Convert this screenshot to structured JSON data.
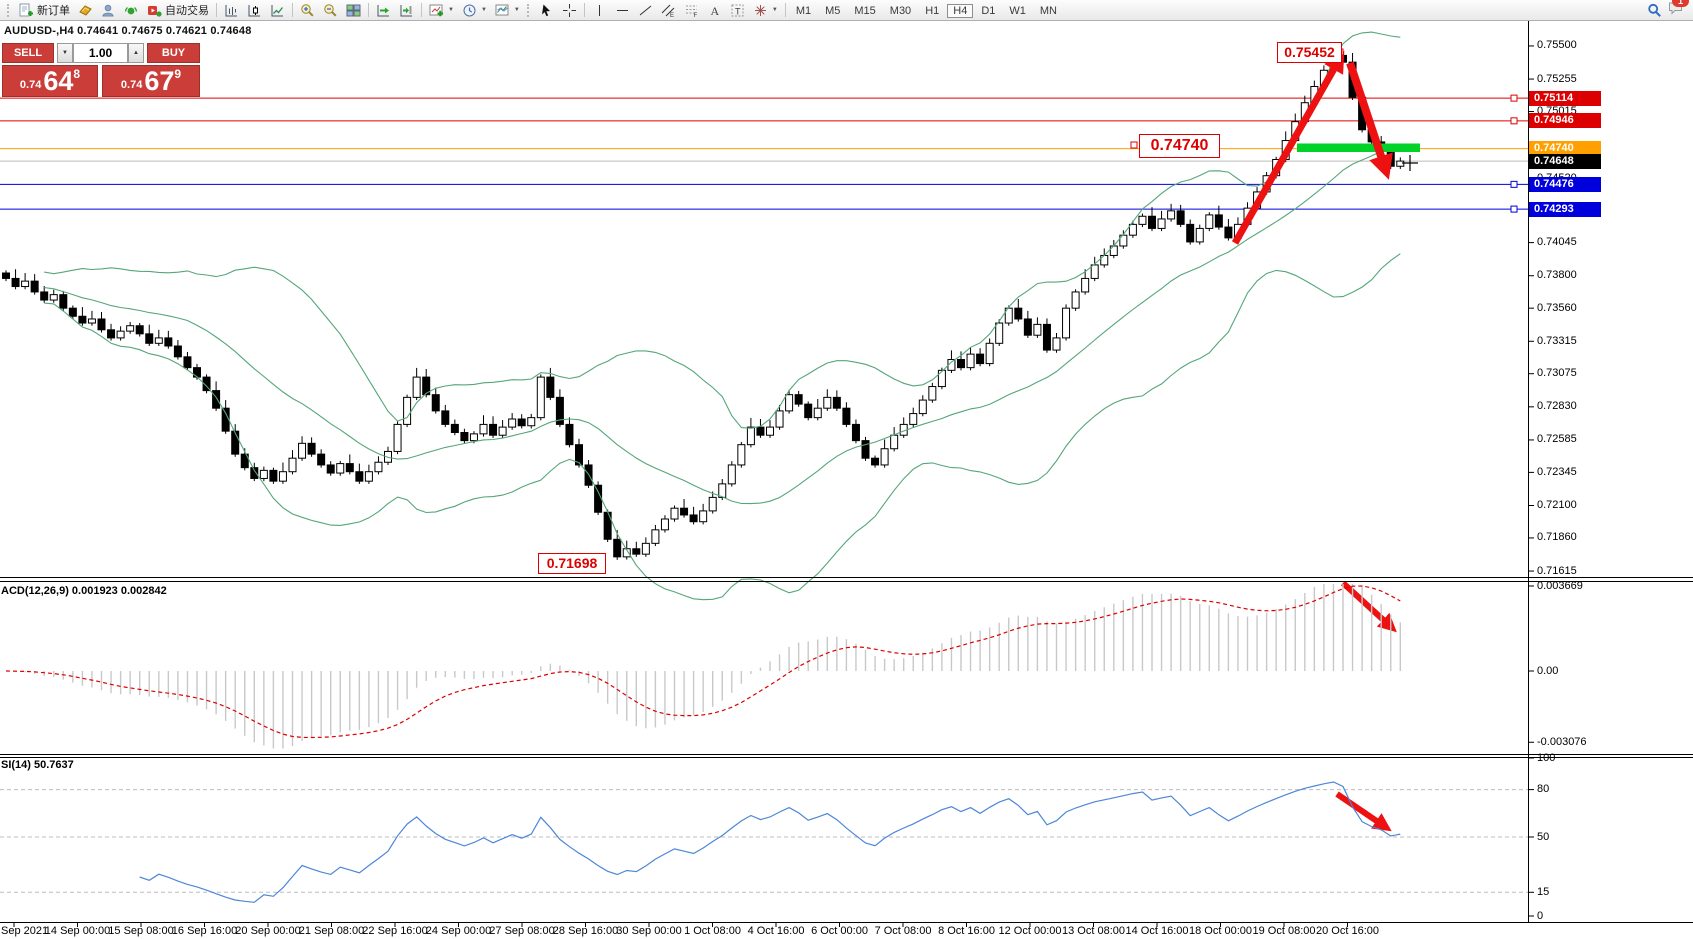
{
  "toolbar": {
    "new_order_label": "新订单",
    "autotrading_label": "自动交易",
    "timeframes": [
      {
        "label": "M1",
        "active": false
      },
      {
        "label": "M5",
        "active": false
      },
      {
        "label": "M15",
        "active": false
      },
      {
        "label": "M30",
        "active": false
      },
      {
        "label": "H1",
        "active": false
      },
      {
        "label": "H4",
        "active": true
      },
      {
        "label": "D1",
        "active": false
      },
      {
        "label": "W1",
        "active": false
      },
      {
        "label": "MN",
        "active": false
      }
    ],
    "notification_badge": "1"
  },
  "header": {
    "title": "AUDUSD-,H4  0.74641 0.74675 0.74621 0.74648"
  },
  "trade_panel": {
    "sell_label": "SELL",
    "buy_label": "BUY",
    "volume": "1.00",
    "sell_price": {
      "prefix": "0.74",
      "big": "64",
      "sup": "8"
    },
    "buy_price": {
      "prefix": "0.74",
      "big": "67",
      "sup": "9"
    }
  },
  "chart_data": {
    "type": "candlestick",
    "symbol": "AUDUSD-",
    "timeframe": "H4",
    "ohlc": {
      "open": 0.74641,
      "high": 0.74675,
      "low": 0.74621,
      "close": 0.74648
    },
    "closes": [
      0.7378,
      0.7372,
      0.7376,
      0.7368,
      0.7362,
      0.7366,
      0.7356,
      0.735,
      0.7345,
      0.7348,
      0.734,
      0.7334,
      0.7339,
      0.7343,
      0.7337,
      0.733,
      0.7334,
      0.7328,
      0.732,
      0.7312,
      0.7305,
      0.7295,
      0.7282,
      0.7265,
      0.7248,
      0.7238,
      0.723,
      0.7236,
      0.7228,
      0.7235,
      0.7245,
      0.7256,
      0.7248,
      0.724,
      0.7234,
      0.7241,
      0.7235,
      0.7228,
      0.7235,
      0.7242,
      0.725,
      0.727,
      0.729,
      0.7305,
      0.7292,
      0.728,
      0.727,
      0.7264,
      0.7258,
      0.7263,
      0.727,
      0.7262,
      0.7268,
      0.7274,
      0.7269,
      0.7275,
      0.7305,
      0.729,
      0.727,
      0.7255,
      0.724,
      0.7225,
      0.7205,
      0.7185,
      0.7172,
      0.7178,
      0.7174,
      0.7182,
      0.7192,
      0.72,
      0.7208,
      0.7203,
      0.7198,
      0.7206,
      0.7216,
      0.7226,
      0.724,
      0.7255,
      0.7268,
      0.7262,
      0.7268,
      0.728,
      0.7292,
      0.7285,
      0.7275,
      0.7282,
      0.729,
      0.7282,
      0.727,
      0.7258,
      0.7245,
      0.724,
      0.7252,
      0.7262,
      0.727,
      0.7278,
      0.7288,
      0.7298,
      0.731,
      0.7318,
      0.7312,
      0.7322,
      0.7315,
      0.733,
      0.7345,
      0.7356,
      0.7348,
      0.7336,
      0.7344,
      0.7325,
      0.7334,
      0.7356,
      0.7368,
      0.7378,
      0.7388,
      0.7395,
      0.7402,
      0.741,
      0.7418,
      0.7424,
      0.7415,
      0.7422,
      0.7428,
      0.7418,
      0.7405,
      0.7415,
      0.7425,
      0.7416,
      0.7408,
      0.7418,
      0.743,
      0.7442,
      0.7454,
      0.7466,
      0.748,
      0.7494,
      0.7508,
      0.752,
      0.7532,
      0.7543,
      0.7538,
      0.7512,
      0.7488,
      0.7479,
      0.7473,
      0.7461,
      0.74648
    ],
    "extremes": {
      "low_index": 64,
      "low": 0.71698,
      "high_index": 139,
      "high": 0.75452
    },
    "price_range": {
      "top": 0.75692,
      "bottom": 0.71571
    },
    "y_ticks": [
      "0.75500",
      "0.75255",
      "0.75015",
      "0.74520",
      "0.74045",
      "0.73800",
      "0.73560",
      "0.73315",
      "0.73075",
      "0.72830",
      "0.72585",
      "0.72345",
      "0.72100",
      "0.71860",
      "0.71615"
    ],
    "price_lines": [
      {
        "price": 0.75114,
        "label": "0.75114",
        "color": "#dd0000",
        "handle": true
      },
      {
        "price": 0.74946,
        "label": "0.74946",
        "color": "#dd0000",
        "handle": true
      },
      {
        "price": 0.7474,
        "label": "0.74740",
        "color": "#ffa000",
        "handle": false
      },
      {
        "price": 0.74648,
        "label": "0.74648",
        "color": "#000000",
        "line_color": "#bcbcbc",
        "handle": false,
        "current": true
      },
      {
        "price": 0.74476,
        "label": "0.74476",
        "color": "#0000dd",
        "handle": true
      },
      {
        "price": 0.74293,
        "label": "0.74293",
        "color": "#0000dd",
        "handle": true
      }
    ],
    "annotations": {
      "peak_label": "0.75452",
      "support_label": "0.74740",
      "low_label": "0.71698"
    },
    "x_labels": [
      "Sep 2021",
      "14 Sep 00:00",
      "15 Sep 08:00",
      "16 Sep 16:00",
      "20 Sep 00:00",
      "21 Sep 08:00",
      "22 Sep 16:00",
      "24 Sep 00:00",
      "27 Sep 08:00",
      "28 Sep 16:00",
      "30 Sep 00:00",
      "1 Oct 08:00",
      "4 Oct 16:00",
      "6 Oct 00:00",
      "7 Oct 08:00",
      "8 Oct 16:00",
      "12 Oct 00:00",
      "13 Oct 08:00",
      "14 Oct 16:00",
      "18 Oct 00:00",
      "19 Oct 08:00",
      "20 Oct 16:00"
    ],
    "indicators": {
      "macd": {
        "label": "ACD(12,26,9) 0.001923 0.002842",
        "ticks": [
          "0.003669",
          "0.00",
          "-0.003076"
        ],
        "fast": 12,
        "slow": 26,
        "signal": 9
      },
      "rsi": {
        "label": "SI(14) 50.7637",
        "ticks": [
          "100",
          "80",
          "50",
          "15",
          "0"
        ],
        "levels": [
          80,
          50,
          15
        ],
        "period": 14
      }
    },
    "colors": {
      "band": "#55a679",
      "bull": "#ffffff",
      "bear": "#000000",
      "outline": "#000000",
      "histogram": "#c8c8c8",
      "signal": "#dd0000",
      "rsi_line": "#4d86d8",
      "arrow": "#ee1111",
      "highlight_bar": "#00d22a",
      "level_dash": "#bdbdbd"
    }
  }
}
